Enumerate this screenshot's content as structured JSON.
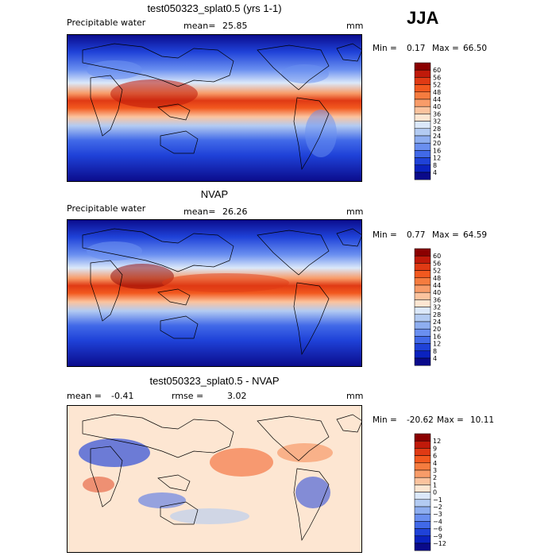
{
  "season": "JJA",
  "panels": [
    {
      "id": "model",
      "title": "test050323_splat0.5 (yrs 1-1)",
      "left_label": "Precipitable water",
      "mean_label": "mean=",
      "mean_value": "25.85",
      "units": "mm",
      "min_label": "Min =",
      "min_value": "0.17",
      "max_label": "Max =",
      "max_value": "66.50"
    },
    {
      "id": "obs",
      "title": "NVAP",
      "left_label": "Precipitable water",
      "mean_label": "mean=",
      "mean_value": "26.26",
      "units": "mm",
      "min_label": "Min =",
      "min_value": "0.77",
      "max_label": "Max =",
      "max_value": "64.59"
    },
    {
      "id": "diff",
      "title": "test050323_splat0.5 - NVAP",
      "mean_label": "mean =",
      "mean_value": "-0.41",
      "rmse_label": "rmse =",
      "rmse_value": "3.02",
      "units": "mm",
      "min_label": "Min =",
      "min_value": "-20.62",
      "max_label": "Max =",
      "max_value": "10.11"
    }
  ],
  "colorbar_abs": {
    "labels": [
      "60",
      "56",
      "52",
      "48",
      "44",
      "40",
      "36",
      "32",
      "28",
      "24",
      "20",
      "16",
      "12",
      "8",
      "4"
    ],
    "colors": [
      "#8b0000",
      "#c01a0a",
      "#e03a14",
      "#f2591f",
      "#f57c3f",
      "#f89c69",
      "#fbc39e",
      "#fde6d2",
      "#dbe8fa",
      "#b3cbf2",
      "#8eaef0",
      "#6a8ff0",
      "#4169e8",
      "#1f42d8",
      "#0a22bf",
      "#0a0a8a"
    ]
  },
  "colorbar_diff": {
    "labels": [
      "12",
      "9",
      "6",
      "4",
      "3",
      "2",
      "1",
      "0",
      "−1",
      "−2",
      "−3",
      "−4",
      "−6",
      "−9",
      "−12"
    ],
    "colors": [
      "#8b0000",
      "#c01a0a",
      "#e03a14",
      "#f2591f",
      "#f57c3f",
      "#f89c69",
      "#fbc39e",
      "#fde6d2",
      "#dbe8fa",
      "#b3cbf2",
      "#8eaef0",
      "#6a8ff0",
      "#4169e8",
      "#1f42d8",
      "#0a22bf",
      "#0a0a8a"
    ]
  }
}
